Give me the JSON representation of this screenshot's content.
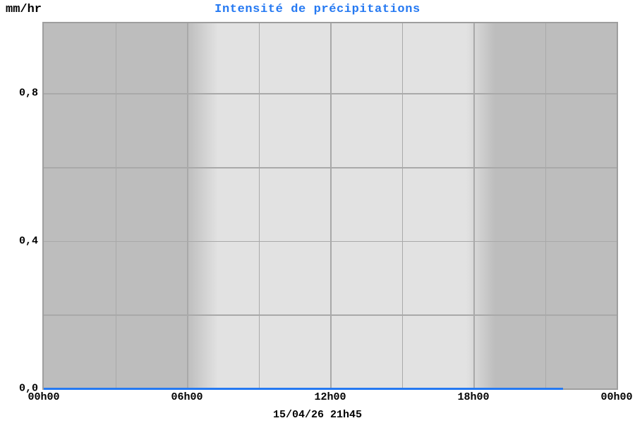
{
  "colors": {
    "accent_blue": "#2579f2",
    "night_gray": "#bdbdbd",
    "day_gray": "#e2e2e2",
    "grid_gray": "#a9a9a9",
    "plot_border_gray": "#9e9e9e",
    "text_black": "#000000",
    "background_white": "#ffffff"
  },
  "chart_data": {
    "type": "line",
    "title": "Intensité de précipitations",
    "ylabel": "mm/hr",
    "xlabel": "",
    "timestamp": "15/04/26 21h45",
    "xlim_hours": [
      0,
      24
    ],
    "ylim": [
      0,
      0.99
    ],
    "grid": "on",
    "x_ticks": [
      {
        "hour": 0,
        "label": "00h00"
      },
      {
        "hour": 6,
        "label": "06h00"
      },
      {
        "hour": 12,
        "label": "12h00"
      },
      {
        "hour": 18,
        "label": "18h00"
      },
      {
        "hour": 24,
        "label": "00h00"
      }
    ],
    "y_ticks": [
      {
        "value": 0.0,
        "label": "0,0"
      },
      {
        "value": 0.4,
        "label": "0,4"
      },
      {
        "value": 0.8,
        "label": "0,8"
      }
    ],
    "x_gridline_hours": [
      3,
      6,
      9,
      12,
      15,
      18,
      21
    ],
    "y_gridline_values": [
      0.2,
      0.4,
      0.6,
      0.8
    ],
    "series": [
      {
        "name": "intensite_precipitations",
        "color": "#2579f2",
        "x_hours": [
          0,
          21.75
        ],
        "values": [
          0,
          0
        ]
      }
    ],
    "day_night_shading": {
      "night_color": "#bdbdbd",
      "day_color": "#e2e2e2",
      "dawn_hours": [
        6.0,
        7.3
      ],
      "dusk_hours": [
        17.7,
        18.9
      ]
    }
  }
}
